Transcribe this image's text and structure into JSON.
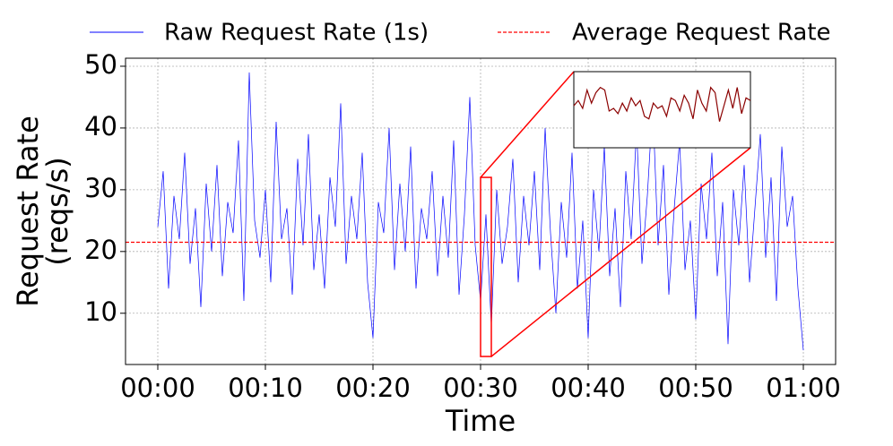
{
  "chart_data": {
    "type": "line",
    "xlabel": "Time",
    "ylabel": [
      "Request Rate",
      "(reqs/s)"
    ],
    "x": [
      0,
      0.5,
      1,
      1.5,
      2,
      2.5,
      3,
      3.5,
      4,
      4.5,
      5,
      5.5,
      6,
      6.5,
      7,
      7.5,
      8,
      8.5,
      9,
      9.5,
      10,
      10.5,
      11,
      11.5,
      12,
      12.5,
      13,
      13.5,
      14,
      14.5,
      15,
      15.5,
      16,
      16.5,
      17,
      17.5,
      18,
      18.5,
      19,
      19.5,
      20,
      20.5,
      21,
      21.5,
      22,
      22.5,
      23,
      23.5,
      24,
      24.5,
      25,
      25.5,
      26,
      26.5,
      27,
      27.5,
      28,
      28.5,
      29,
      29.5,
      30,
      30.5,
      31,
      31.5,
      32,
      32.5,
      33,
      33.5,
      34,
      34.5,
      35,
      35.5,
      36,
      36.5,
      37,
      37.5,
      38,
      38.5,
      39,
      39.5,
      40,
      40.5,
      41,
      41.5,
      42,
      42.5,
      43,
      43.5,
      44,
      44.5,
      45,
      45.5,
      46,
      46.5,
      47,
      47.5,
      48,
      48.5,
      49,
      49.5,
      50,
      50.5,
      51,
      51.5,
      52,
      52.5,
      53,
      53.5,
      54,
      54.5,
      55,
      55.5,
      56,
      56.5,
      57,
      57.5,
      58,
      58.5,
      59,
      59.5,
      60
    ],
    "series": [
      {
        "name": "Raw Request Rate (1s)",
        "color": "#0000ff",
        "values": [
          24,
          33,
          14,
          29,
          22,
          36,
          18,
          27,
          11,
          31,
          20,
          34,
          16,
          28,
          23,
          38,
          12,
          49,
          25,
          19,
          30,
          15,
          41,
          22,
          27,
          13,
          35,
          21,
          39,
          17,
          26,
          14,
          32,
          24,
          44,
          18,
          29,
          22,
          36,
          15,
          6,
          28,
          23,
          40,
          17,
          31,
          20,
          37,
          14,
          27,
          22,
          33,
          16,
          29,
          19,
          38,
          13,
          26,
          45,
          21,
          12,
          26,
          8,
          30,
          18,
          24,
          35,
          15,
          29,
          21,
          33,
          17,
          40,
          23,
          10,
          28,
          19,
          36,
          14,
          25,
          6,
          30,
          20,
          37,
          16,
          27,
          11,
          33,
          22,
          40,
          18,
          29,
          44,
          21,
          34,
          13,
          27,
          38,
          17,
          25,
          9,
          31,
          22,
          36,
          16,
          28,
          5,
          30,
          21,
          34,
          15,
          27,
          39,
          19,
          32,
          12,
          37,
          24,
          29,
          14,
          4
        ]
      }
    ],
    "hlines": [
      {
        "name": "Average Request Rate",
        "color": "#ff0000",
        "value": 21.5
      }
    ],
    "xlim": [
      -3,
      63
    ],
    "ylim": [
      1.7,
      51.3
    ],
    "xticks": [
      {
        "value": 0,
        "label": "00:00"
      },
      {
        "value": 10,
        "label": "00:10"
      },
      {
        "value": 20,
        "label": "00:20"
      },
      {
        "value": 30,
        "label": "00:30"
      },
      {
        "value": 40,
        "label": "00:40"
      },
      {
        "value": 50,
        "label": "00:50"
      },
      {
        "value": 60,
        "label": "01:00"
      }
    ],
    "yticks": [
      10,
      20,
      30,
      40,
      50
    ],
    "grid": true,
    "legend": "top",
    "inset": {
      "color": "#8b0000",
      "zoom_color": "#ff0000",
      "xlim": [
        30,
        31
      ],
      "ylim": [
        3,
        32
      ],
      "x": [
        30,
        30.025,
        30.05,
        30.075,
        30.1,
        30.125,
        30.15,
        30.175,
        30.2,
        30.225,
        30.25,
        30.275,
        30.3,
        30.325,
        30.35,
        30.375,
        30.4,
        30.425,
        30.45,
        30.475,
        30.5,
        30.525,
        30.55,
        30.575,
        30.6,
        30.625,
        30.65,
        30.675,
        30.7,
        30.725,
        30.75,
        30.775,
        30.8,
        30.825,
        30.85,
        30.875,
        30.9,
        30.925,
        30.95,
        30.975,
        31
      ],
      "values": [
        19,
        21,
        18,
        25,
        20,
        24,
        26,
        25,
        17,
        18,
        16,
        20,
        17,
        22,
        19,
        21,
        15,
        14,
        20,
        18,
        19,
        15,
        22,
        21,
        17,
        23,
        20,
        14,
        25,
        20,
        17,
        26,
        24,
        13,
        19,
        25,
        18,
        26,
        16,
        22,
        21
      ]
    }
  }
}
